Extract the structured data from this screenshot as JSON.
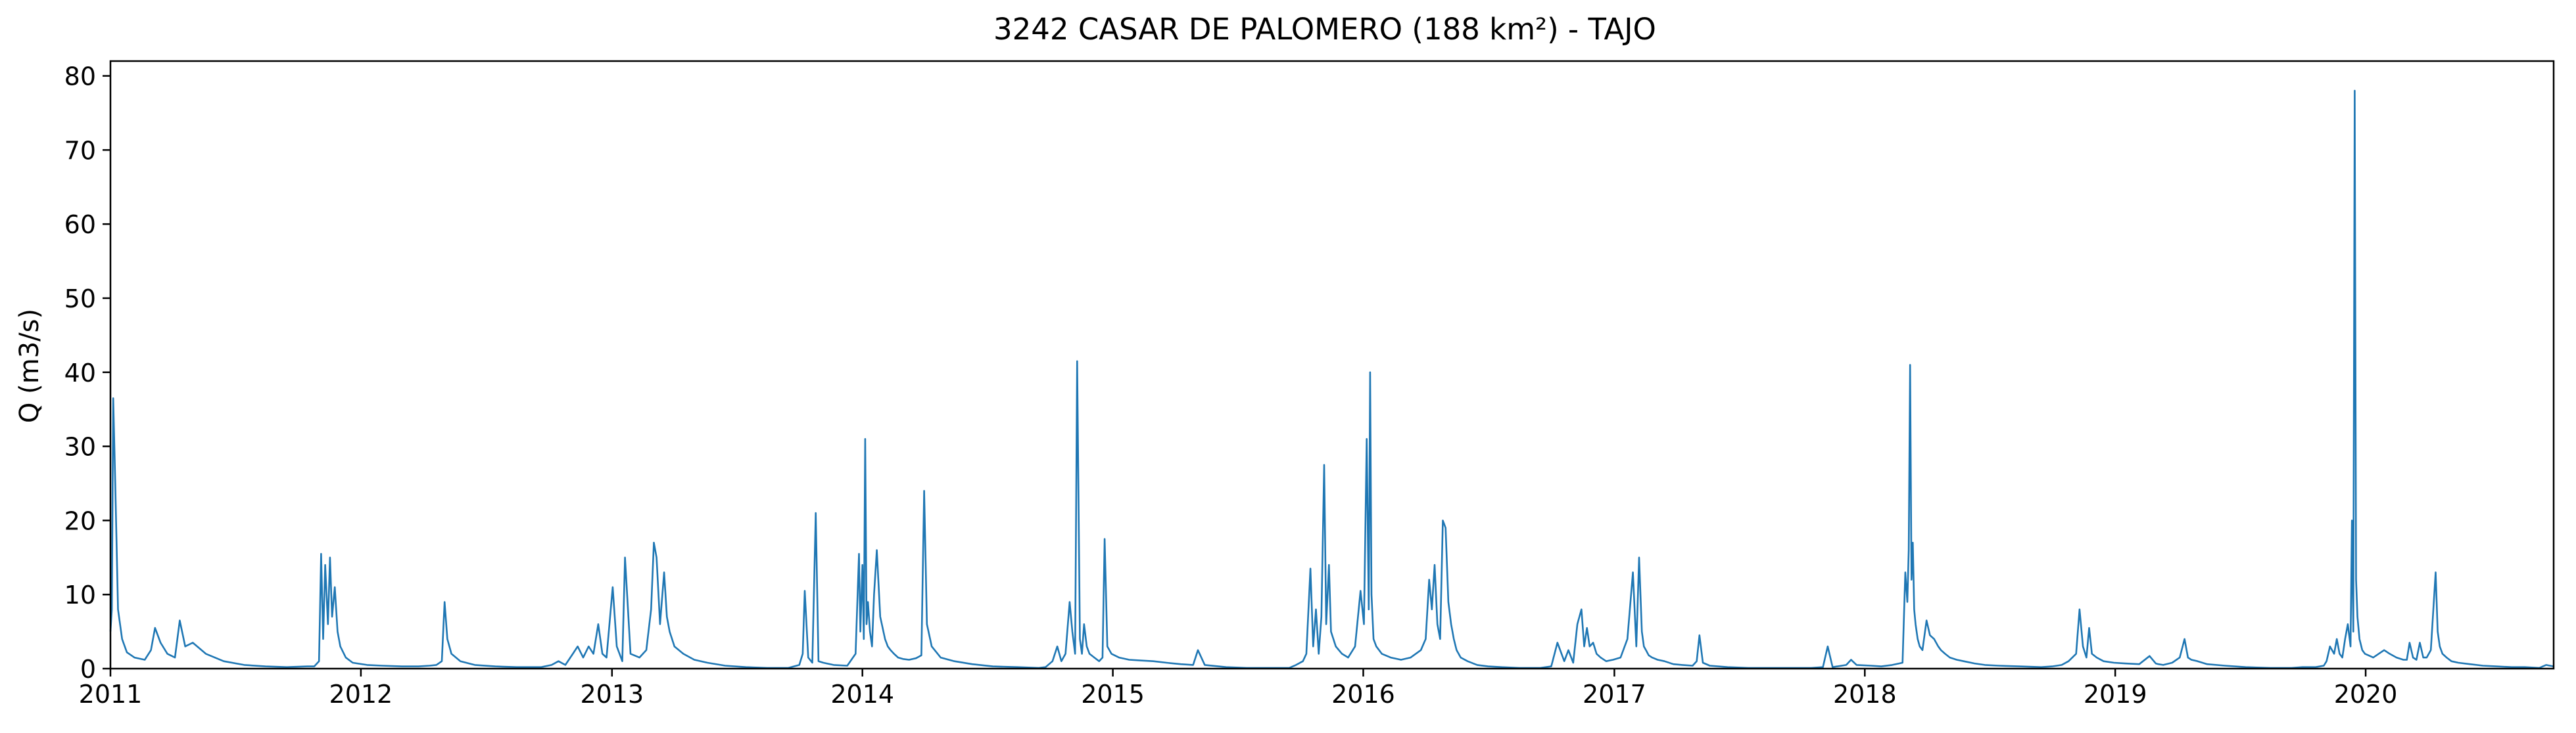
{
  "chart_data": {
    "type": "line",
    "title": "3242 CASAR DE PALOMERO (188 km²) - TAJO",
    "xlabel": "",
    "ylabel": "Q (m3/s)",
    "xlim": [
      "2011-01-01",
      "2020-10-01"
    ],
    "ylim": [
      0,
      82
    ],
    "xticks": [
      "2011",
      "2012",
      "2013",
      "2014",
      "2015",
      "2016",
      "2017",
      "2018",
      "2019",
      "2020"
    ],
    "yticks": [
      "0",
      "10",
      "20",
      "30",
      "40",
      "50",
      "60",
      "70",
      "80"
    ],
    "grid": false,
    "legend": "none",
    "series": [
      {
        "color": "#1f77b4",
        "x": [
          "2011-01-01",
          "2011-01-03",
          "2011-01-05",
          "2011-01-08",
          "2011-01-12",
          "2011-01-18",
          "2011-01-25",
          "2011-02-05",
          "2011-02-20",
          "2011-03-01",
          "2011-03-07",
          "2011-03-15",
          "2011-03-25",
          "2011-04-05",
          "2011-04-12",
          "2011-04-20",
          "2011-05-01",
          "2011-05-20",
          "2011-06-15",
          "2011-07-15",
          "2011-08-15",
          "2011-09-15",
          "2011-10-15",
          "2011-10-25",
          "2011-11-01",
          "2011-11-04",
          "2011-11-07",
          "2011-11-10",
          "2011-11-14",
          "2011-11-17",
          "2011-11-20",
          "2011-11-24",
          "2011-11-28",
          "2011-12-02",
          "2011-12-10",
          "2011-12-20",
          "2012-01-10",
          "2012-02-01",
          "2012-03-01",
          "2012-03-25",
          "2012-04-10",
          "2012-04-20",
          "2012-04-28",
          "2012-05-02",
          "2012-05-06",
          "2012-05-12",
          "2012-05-25",
          "2012-06-15",
          "2012-07-15",
          "2012-08-15",
          "2012-09-20",
          "2012-10-05",
          "2012-10-15",
          "2012-10-25",
          "2012-11-05",
          "2012-11-12",
          "2012-11-20",
          "2012-11-28",
          "2012-12-05",
          "2012-12-12",
          "2012-12-18",
          "2012-12-24",
          "2013-01-02",
          "2013-01-08",
          "2013-01-12",
          "2013-01-16",
          "2013-01-20",
          "2013-01-28",
          "2013-02-10",
          "2013-02-20",
          "2013-02-27",
          "2013-03-03",
          "2013-03-07",
          "2013-03-12",
          "2013-03-18",
          "2013-03-22",
          "2013-03-26",
          "2013-04-02",
          "2013-04-15",
          "2013-05-01",
          "2013-05-20",
          "2013-06-15",
          "2013-07-15",
          "2013-08-15",
          "2013-09-15",
          "2013-10-01",
          "2013-10-06",
          "2013-10-09",
          "2013-10-14",
          "2013-10-20",
          "2013-10-25",
          "2013-10-29",
          "2013-11-05",
          "2013-11-20",
          "2013-12-10",
          "2013-12-22",
          "2013-12-27",
          "2013-12-29",
          "2014-01-01",
          "2014-01-03",
          "2014-01-05",
          "2014-01-07",
          "2014-01-09",
          "2014-01-12",
          "2014-01-15",
          "2014-01-18",
          "2014-01-22",
          "2014-01-27",
          "2014-02-03",
          "2014-02-07",
          "2014-02-11",
          "2014-02-16",
          "2014-02-22",
          "2014-03-01",
          "2014-03-10",
          "2014-03-20",
          "2014-03-28",
          "2014-04-01",
          "2014-04-05",
          "2014-04-12",
          "2014-04-25",
          "2014-05-15",
          "2014-06-10",
          "2014-07-10",
          "2014-08-15",
          "2014-09-15",
          "2014-09-25",
          "2014-10-05",
          "2014-10-12",
          "2014-10-18",
          "2014-10-24",
          "2014-10-30",
          "2014-11-03",
          "2014-11-07",
          "2014-11-10",
          "2014-11-14",
          "2014-11-17",
          "2014-11-20",
          "2014-11-24",
          "2014-11-28",
          "2014-12-05",
          "2014-12-12",
          "2014-12-17",
          "2014-12-20",
          "2014-12-24",
          "2014-12-30",
          "2015-01-10",
          "2015-01-25",
          "2015-02-10",
          "2015-03-01",
          "2015-03-20",
          "2015-04-10",
          "2015-04-28",
          "2015-05-05",
          "2015-05-15",
          "2015-06-15",
          "2015-07-15",
          "2015-08-15",
          "2015-09-15",
          "2015-09-25",
          "2015-10-05",
          "2015-10-10",
          "2015-10-16",
          "2015-10-20",
          "2015-10-24",
          "2015-10-28",
          "2015-11-01",
          "2015-11-05",
          "2015-11-08",
          "2015-11-12",
          "2015-11-15",
          "2015-11-22",
          "2015-12-01",
          "2015-12-10",
          "2015-12-20",
          "2015-12-28",
          "2016-01-02",
          "2016-01-06",
          "2016-01-09",
          "2016-01-11",
          "2016-01-13",
          "2016-01-16",
          "2016-01-20",
          "2016-01-28",
          "2016-02-10",
          "2016-02-25",
          "2016-03-10",
          "2016-03-25",
          "2016-04-01",
          "2016-04-06",
          "2016-04-10",
          "2016-04-14",
          "2016-04-18",
          "2016-04-22",
          "2016-04-26",
          "2016-04-30",
          "2016-05-04",
          "2016-05-08",
          "2016-05-12",
          "2016-05-16",
          "2016-05-22",
          "2016-06-01",
          "2016-06-15",
          "2016-07-01",
          "2016-07-20",
          "2016-08-15",
          "2016-09-15",
          "2016-10-01",
          "2016-10-10",
          "2016-10-20",
          "2016-10-26",
          "2016-11-02",
          "2016-11-08",
          "2016-11-14",
          "2016-11-18",
          "2016-11-22",
          "2016-11-26",
          "2016-12-01",
          "2016-12-06",
          "2016-12-12",
          "2016-12-20",
          "2016-12-30",
          "2017-01-10",
          "2017-01-20",
          "2017-01-28",
          "2017-02-02",
          "2017-02-06",
          "2017-02-10",
          "2017-02-13",
          "2017-02-16",
          "2017-02-20",
          "2017-02-25",
          "2017-03-05",
          "2017-03-15",
          "2017-03-28",
          "2017-04-10",
          "2017-04-25",
          "2017-05-01",
          "2017-05-05",
          "2017-05-10",
          "2017-05-20",
          "2017-06-15",
          "2017-07-15",
          "2017-08-15",
          "2017-09-15",
          "2017-10-15",
          "2017-11-01",
          "2017-11-08",
          "2017-11-15",
          "2017-12-05",
          "2017-12-12",
          "2017-12-20",
          "2018-01-10",
          "2018-01-25",
          "2018-02-10",
          "2018-02-25",
          "2018-03-01",
          "2018-03-04",
          "2018-03-06",
          "2018-03-08",
          "2018-03-10",
          "2018-03-12",
          "2018-03-14",
          "2018-03-16",
          "2018-03-19",
          "2018-03-22",
          "2018-03-26",
          "2018-04-01",
          "2018-04-06",
          "2018-04-12",
          "2018-04-18",
          "2018-04-22",
          "2018-04-28",
          "2018-05-05",
          "2018-05-15",
          "2018-05-25",
          "2018-06-10",
          "2018-06-25",
          "2018-07-15",
          "2018-08-15",
          "2018-09-15",
          "2018-10-01",
          "2018-10-15",
          "2018-10-25",
          "2018-11-05",
          "2018-11-10",
          "2018-11-15",
          "2018-11-20",
          "2018-11-24",
          "2018-11-28",
          "2018-12-05",
          "2018-12-15",
          "2018-12-30",
          "2019-01-15",
          "2019-02-05",
          "2019-02-20",
          "2019-03-01",
          "2019-03-05",
          "2019-03-12",
          "2019-03-25",
          "2019-04-05",
          "2019-04-12",
          "2019-04-17",
          "2019-04-22",
          "2019-05-01",
          "2019-05-15",
          "2019-06-10",
          "2019-07-10",
          "2019-08-15",
          "2019-09-15",
          "2019-10-01",
          "2019-10-20",
          "2019-11-01",
          "2019-11-05",
          "2019-11-10",
          "2019-11-16",
          "2019-11-20",
          "2019-11-24",
          "2019-11-28",
          "2019-12-02",
          "2019-12-06",
          "2019-12-10",
          "2019-12-12",
          "2019-12-14",
          "2019-12-16",
          "2019-12-18",
          "2019-12-20",
          "2019-12-23",
          "2019-12-27",
          "2019-12-31",
          "2020-01-05",
          "2020-01-12",
          "2020-01-20",
          "2020-01-28",
          "2020-02-05",
          "2020-02-15",
          "2020-02-25",
          "2020-03-01",
          "2020-03-05",
          "2020-03-10",
          "2020-03-15",
          "2020-03-20",
          "2020-03-25",
          "2020-03-30",
          "2020-04-05",
          "2020-04-12",
          "2020-04-15",
          "2020-04-18",
          "2020-04-22",
          "2020-04-28",
          "2020-05-05",
          "2020-05-15",
          "2020-06-01",
          "2020-06-20",
          "2020-07-10",
          "2020-08-01",
          "2020-08-20",
          "2020-09-10",
          "2020-09-20",
          "2020-10-01"
        ],
        "y": [
          5,
          8,
          36.5,
          25,
          8,
          4,
          2.2,
          1.5,
          1.2,
          2.5,
          5.5,
          3.5,
          2,
          1.5,
          6.5,
          3,
          3.5,
          2,
          1,
          0.5,
          0.3,
          0.2,
          0.3,
          0.3,
          1,
          15.5,
          4,
          14,
          6,
          15,
          7,
          11,
          5,
          3,
          1.5,
          0.8,
          0.5,
          0.4,
          0.3,
          0.3,
          0.4,
          0.5,
          1,
          9,
          4,
          2,
          1,
          0.5,
          0.3,
          0.2,
          0.2,
          0.5,
          1,
          0.5,
          2,
          3,
          1.5,
          3,
          2,
          6,
          2,
          1.5,
          11,
          3,
          2,
          1,
          15,
          2,
          1.5,
          2.5,
          8,
          17,
          15,
          6,
          13,
          7,
          5,
          3,
          2,
          1.2,
          0.8,
          0.4,
          0.2,
          0.1,
          0.1,
          0.5,
          2,
          10.5,
          1.5,
          0.8,
          21,
          1,
          0.8,
          0.5,
          0.4,
          2,
          15.5,
          5,
          14,
          4,
          31,
          6,
          9,
          5,
          3,
          10,
          16,
          7,
          4,
          3,
          2.5,
          2,
          1.5,
          1.3,
          1.2,
          1.4,
          1.8,
          24,
          6,
          3,
          1.5,
          1,
          0.6,
          0.3,
          0.2,
          0.1,
          0.2,
          1,
          3,
          1,
          2,
          9,
          5,
          2,
          41.5,
          4,
          2,
          6,
          3,
          2,
          1.5,
          1,
          1.5,
          17.5,
          3,
          2,
          1.5,
          1.2,
          1.1,
          1,
          0.8,
          0.6,
          0.5,
          2.5,
          0.5,
          0.2,
          0.1,
          0.1,
          0.1,
          0.5,
          1,
          2,
          13.5,
          3,
          8,
          2,
          7,
          27.5,
          6,
          14,
          5,
          3,
          2,
          1.5,
          3,
          10.5,
          6,
          31,
          8,
          40,
          10,
          4,
          3,
          2,
          1.5,
          1.2,
          1.5,
          2.5,
          4,
          12,
          8,
          14,
          6,
          4,
          20,
          19,
          9,
          6,
          4,
          2.5,
          1.5,
          1,
          0.5,
          0.3,
          0.2,
          0.1,
          0.1,
          0.3,
          3.5,
          1,
          2.5,
          0.8,
          6,
          8,
          3,
          5.5,
          3,
          3.5,
          2,
          1.5,
          1,
          1.2,
          1.5,
          4,
          13,
          3,
          15,
          5,
          3,
          2.5,
          1.8,
          1.5,
          1.2,
          1,
          0.6,
          0.5,
          0.4,
          1,
          4.5,
          0.8,
          0.4,
          0.2,
          0.1,
          0.1,
          0.1,
          0.1,
          0.2,
          3,
          0.2,
          0.5,
          1.2,
          0.5,
          0.4,
          0.3,
          0.5,
          0.8,
          13,
          9,
          16,
          41,
          12,
          17,
          8,
          6,
          4,
          3,
          2.5,
          6.5,
          4.5,
          4,
          3,
          2.5,
          2,
          1.5,
          1.2,
          1,
          0.7,
          0.5,
          0.4,
          0.3,
          0.2,
          0.3,
          0.5,
          1,
          2,
          8,
          3,
          1.5,
          5.5,
          2,
          1.5,
          1,
          0.8,
          0.7,
          0.6,
          1.7,
          0.7,
          0.6,
          0.5,
          0.8,
          1.5,
          4,
          1.5,
          1.2,
          1,
          0.6,
          0.4,
          0.2,
          0.1,
          0.1,
          0.2,
          0.2,
          0.4,
          1,
          3,
          2,
          4,
          2,
          1.5,
          4,
          6,
          3,
          20,
          5,
          78,
          12,
          7,
          4,
          2.5,
          2,
          1.8,
          1.5,
          2,
          2.5,
          2,
          1.5,
          1.2,
          1.2,
          3.5,
          1.5,
          1.2,
          3.5,
          1.5,
          1.5,
          2.5,
          13,
          5,
          3,
          2,
          1.5,
          1,
          0.8,
          0.6,
          0.4,
          0.3,
          0.2,
          0.2,
          0.1,
          0.5,
          0.3
        ]
      }
    ]
  }
}
